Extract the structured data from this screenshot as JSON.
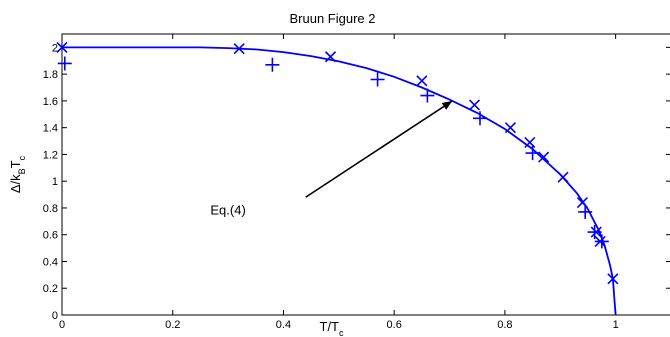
{
  "chart_data": {
    "type": "scatter",
    "title": "Bruun Figure 2",
    "xlabel": "T/T",
    "xlabel_subscript": "c",
    "ylabel": "Δ/k",
    "ylabel_sub": "B",
    "ylabel_tail": "T",
    "ylabel_tail_sub": "c",
    "xlim": [
      0,
      1.1
    ],
    "ylim": [
      0,
      2.1
    ],
    "x_ticks": [
      0,
      0.2,
      0.4,
      0.6,
      0.8,
      1
    ],
    "x_tick_labels": [
      "0",
      "0.2",
      "0.4",
      "0.6",
      "0.8",
      "1"
    ],
    "y_ticks": [
      0,
      0.2,
      0.4,
      0.6,
      0.8,
      1,
      1.2,
      1.4,
      1.6,
      1.8,
      2
    ],
    "y_tick_labels": [
      "0",
      "0.2",
      "0.4",
      "0.6",
      "0.8",
      "1",
      "1.2",
      "1.4",
      "1.6",
      "1.8",
      "2"
    ],
    "grid": false,
    "color": "#0000ff",
    "series": [
      {
        "marker": "x",
        "x": [
          0,
          0.32,
          0.485,
          0.65,
          0.745,
          0.81,
          0.845,
          0.87,
          0.905,
          0.94,
          0.965,
          0.972,
          0.995
        ],
        "y": [
          2.0,
          1.99,
          1.93,
          1.75,
          1.57,
          1.4,
          1.29,
          1.18,
          1.03,
          0.84,
          0.62,
          0.55,
          0.27
        ]
      },
      {
        "marker": "+",
        "x": [
          0.005,
          0.38,
          0.57,
          0.66,
          0.755,
          0.85,
          0.945,
          0.962,
          0.975
        ],
        "y": [
          1.88,
          1.87,
          1.76,
          1.64,
          1.47,
          1.21,
          0.77,
          0.62,
          0.55
        ]
      },
      {
        "marker": "line",
        "x": [
          0,
          0.05,
          0.1,
          0.15,
          0.2,
          0.25,
          0.3,
          0.35,
          0.4,
          0.45,
          0.5,
          0.55,
          0.6,
          0.65,
          0.7,
          0.75,
          0.8,
          0.85,
          0.9,
          0.93,
          0.95,
          0.97,
          0.98,
          0.99,
          0.995,
          1.0
        ],
        "y": [
          2.0,
          2.0,
          2.0,
          2.0,
          2.0,
          2.0,
          1.995,
          1.985,
          1.965,
          1.935,
          1.895,
          1.845,
          1.78,
          1.7,
          1.61,
          1.51,
          1.39,
          1.24,
          1.05,
          0.91,
          0.79,
          0.63,
          0.52,
          0.37,
          0.27,
          0.0
        ]
      }
    ],
    "annotation": {
      "text": "Eq.(4)",
      "text_x": 0.3,
      "text_y": 0.78,
      "arrow_from_x": 0.44,
      "arrow_from_y": 0.88,
      "arrow_to_x": 0.705,
      "arrow_to_y": 1.6
    }
  }
}
